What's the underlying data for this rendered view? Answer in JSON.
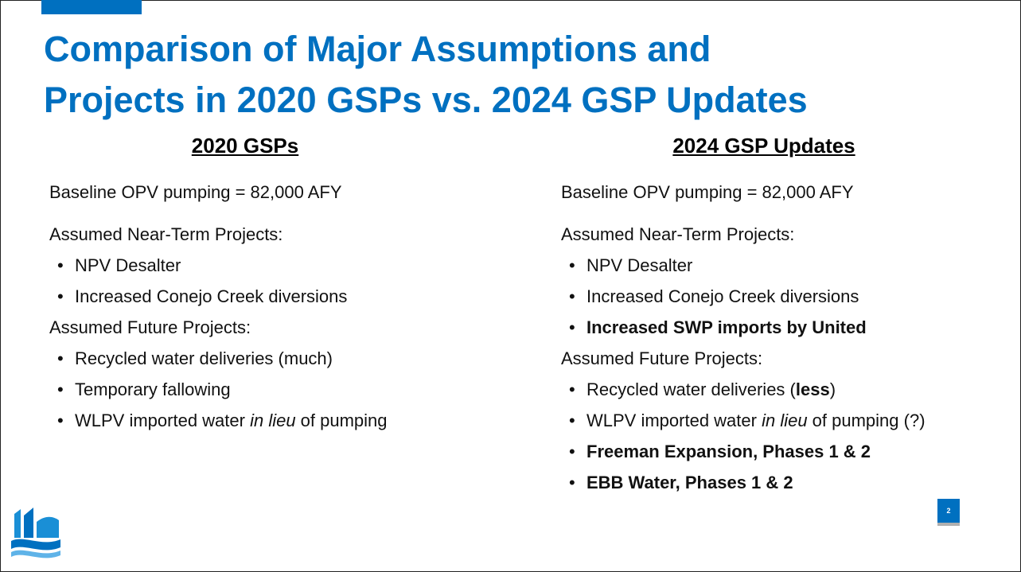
{
  "title": [
    "Comparison of Major Assumptions and",
    "Projects in 2020 GSPs vs. 2024 GSP Updates"
  ],
  "columns": [
    {
      "heading": "2020 GSPs",
      "lines": [
        {
          "bullet": false,
          "runs": [
            {
              "text": "Baseline OPV pumping = 82,000 AFY"
            }
          ]
        },
        {
          "bullet": false,
          "runs": [
            {
              "text": "Assumed Near-Term Projects:"
            }
          ]
        },
        {
          "bullet": true,
          "runs": [
            {
              "text": "NPV Desalter"
            }
          ]
        },
        {
          "bullet": true,
          "runs": [
            {
              "text": "Increased Conejo Creek diversions"
            }
          ]
        },
        {
          "bullet": false,
          "runs": [
            {
              "text": "Assumed Future Projects:"
            }
          ]
        },
        {
          "bullet": true,
          "runs": [
            {
              "text": "Recycled water deliveries (much)"
            }
          ]
        },
        {
          "bullet": true,
          "runs": [
            {
              "text": "Temporary fallowing"
            }
          ]
        },
        {
          "bullet": true,
          "runs": [
            {
              "text": "WLPV imported water "
            },
            {
              "text": "in lieu",
              "italic": true
            },
            {
              "text": " of pumping"
            }
          ]
        }
      ]
    },
    {
      "heading": "2024 GSP Updates",
      "lines": [
        {
          "bullet": false,
          "runs": [
            {
              "text": "Baseline OPV pumping = 82,000 AFY"
            }
          ]
        },
        {
          "bullet": false,
          "runs": [
            {
              "text": "Assumed Near-Term Projects:"
            }
          ]
        },
        {
          "bullet": true,
          "runs": [
            {
              "text": "NPV Desalter"
            }
          ]
        },
        {
          "bullet": true,
          "runs": [
            {
              "text": "Increased Conejo Creek diversions"
            }
          ]
        },
        {
          "bullet": true,
          "runs": [
            {
              "text": "Increased SWP imports by United",
              "bold": true
            }
          ]
        },
        {
          "bullet": false,
          "runs": [
            {
              "text": "Assumed Future Projects:"
            }
          ]
        },
        {
          "bullet": true,
          "runs": [
            {
              "text": "Recycled water deliveries ("
            },
            {
              "text": "less",
              "bold": true
            },
            {
              "text": ")"
            }
          ]
        },
        {
          "bullet": true,
          "runs": [
            {
              "text": "WLPV imported water "
            },
            {
              "text": "in lieu",
              "italic": true
            },
            {
              "text": " of pumping (?)"
            }
          ]
        },
        {
          "bullet": true,
          "runs": [
            {
              "text": "Freeman Expansion, Phases 1 & 2",
              "bold": true
            }
          ]
        },
        {
          "bullet": true,
          "runs": [
            {
              "text": "EBB Water, Phases 1 & 2",
              "bold": true
            }
          ]
        }
      ]
    }
  ],
  "page_number": "2"
}
